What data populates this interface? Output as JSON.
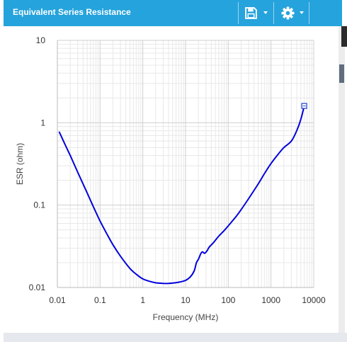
{
  "window": {
    "title": "Equivalent Series Resistance",
    "save_icon": "save-icon",
    "settings_icon": "gear-icon",
    "header_color": "#25a3dc"
  },
  "chart_data": {
    "type": "line",
    "title": "",
    "xlabel": "Frequency (MHz)",
    "ylabel": "ESR (ohm)",
    "xscale": "log",
    "yscale": "log",
    "xlim": [
      0.01,
      10000
    ],
    "ylim": [
      0.01,
      10
    ],
    "xticks": [
      "0.01",
      "0.1",
      "1",
      "10",
      "100",
      "1000",
      "10000"
    ],
    "yticks": [
      "10",
      "1",
      "0.1",
      "0.01"
    ],
    "grid": true,
    "legend": "none",
    "marker_point": {
      "x": 6000,
      "y": 1.6
    },
    "series": [
      {
        "color": "#0000dd",
        "x": [
          0.011,
          0.015,
          0.02,
          0.03,
          0.05,
          0.07,
          0.1,
          0.15,
          0.2,
          0.3,
          0.5,
          0.7,
          1,
          1.5,
          2,
          3,
          4,
          5,
          7,
          10,
          13,
          16,
          18,
          20,
          23,
          25,
          28,
          32,
          36,
          45,
          60,
          80,
          100,
          150,
          200,
          300,
          500,
          700,
          1000,
          1500,
          2000,
          3000,
          4000,
          5000,
          6000
        ],
        "y": [
          0.78,
          0.55,
          0.4,
          0.25,
          0.14,
          0.095,
          0.064,
          0.043,
          0.033,
          0.024,
          0.017,
          0.0145,
          0.0127,
          0.0118,
          0.0114,
          0.0112,
          0.0112,
          0.0113,
          0.0116,
          0.0122,
          0.0135,
          0.016,
          0.02,
          0.022,
          0.026,
          0.027,
          0.026,
          0.028,
          0.031,
          0.035,
          0.042,
          0.049,
          0.056,
          0.072,
          0.088,
          0.12,
          0.18,
          0.24,
          0.32,
          0.42,
          0.5,
          0.6,
          0.8,
          1.1,
          1.6
        ]
      }
    ]
  }
}
